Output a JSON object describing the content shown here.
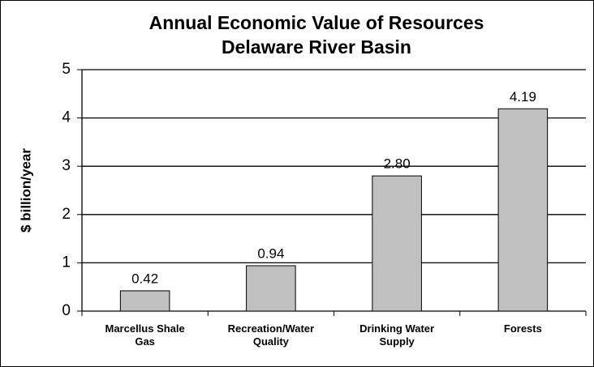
{
  "chart_data": {
    "type": "bar",
    "title": "Annual Economic Value of Resources",
    "subtitle": "Delaware River Basin",
    "y_label": "$ billion/year",
    "categories": [
      "Marcellus Shale Gas",
      "Recreation/Water Quality",
      "Drinking Water Supply",
      "Forests"
    ],
    "values": [
      0.42,
      0.94,
      2.8,
      4.19
    ],
    "value_labels": [
      "0.42",
      "0.94",
      "2.80",
      "4.19"
    ],
    "color": "#c0c0c0",
    "ylim": [
      0,
      5
    ],
    "yticks": [
      0,
      1,
      2,
      3,
      4,
      5
    ],
    "grid": true
  }
}
